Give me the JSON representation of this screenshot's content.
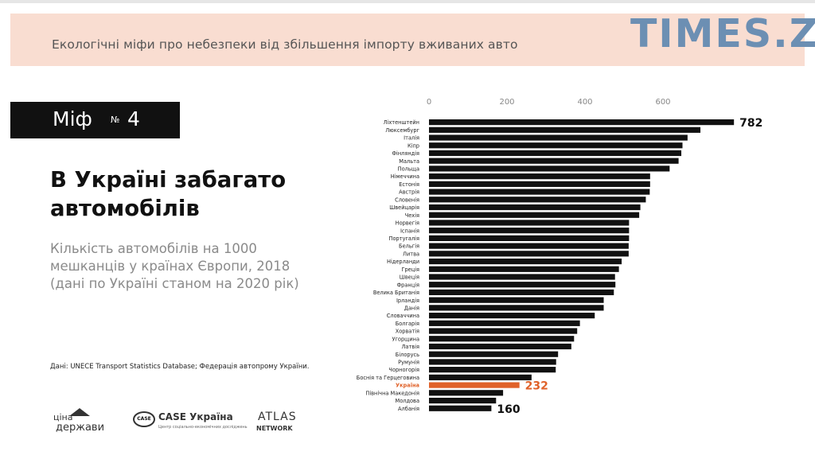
{
  "banner": {
    "text": "Екологічні міфи про небезпеки від збільшення імпорту вживаних авто"
  },
  "watermark": {
    "text": "TIMES.ZT"
  },
  "myth": {
    "word": "Міф",
    "no": "№",
    "number": "4"
  },
  "headline": {
    "line1": "В Україні забагато",
    "line2": "автомобілів"
  },
  "subtitle": {
    "line1": "Кількість автомобілів на 1000",
    "line2": "мешканців у країнах Європи, 2018",
    "line3": "(дані по Україні станом на 2020 рік)"
  },
  "source": {
    "text": "Дані: UNECE Transport Statistics Database; Федерація автопрому України."
  },
  "logos": {
    "cina_line1": "ціна",
    "cina_line2": "держави",
    "case_badge": "CASE",
    "case_name": "CASE Україна",
    "case_small": "Центр соціально-економічних досліджень",
    "atlas_line1": "ATLAS",
    "atlas_line2": "NETWORK"
  },
  "colors": {
    "bar": "#111111",
    "highlight": "#e0622a",
    "axis_text": "#888888"
  },
  "chart_data": {
    "type": "bar",
    "orientation": "horizontal",
    "xlim": [
      0,
      800
    ],
    "ticks": [
      0,
      200,
      400,
      600
    ],
    "highlight": "Україна",
    "categories": [
      "Ліхтенштейн",
      "Люксембург",
      "Італія",
      "Кіпр",
      "Фінляндія",
      "Мальта",
      "Польща",
      "Німеччина",
      "Естонія",
      "Австрія",
      "Словенія",
      "Швейцарія",
      "Чехія",
      "Норвегія",
      "Іспанія",
      "Португалія",
      "Бельгія",
      "Литва",
      "Нідерланди",
      "Греція",
      "Швеція",
      "Франція",
      "Велика Британія",
      "Ірландія",
      "Данія",
      "Словаччина",
      "Болгарія",
      "Хорватія",
      "Угорщина",
      "Латвія",
      "Білорусь",
      "Румунія",
      "Чорногорія",
      "Боснія та Герцеговина",
      "Україна",
      "Північна Македонія",
      "Молдова",
      "Албанія"
    ],
    "values": [
      782,
      696,
      663,
      650,
      647,
      640,
      617,
      567,
      567,
      566,
      556,
      542,
      539,
      513,
      513,
      513,
      512,
      512,
      494,
      487,
      477,
      478,
      474,
      448,
      448,
      425,
      387,
      380,
      372,
      365,
      331,
      326,
      325,
      263,
      232,
      190,
      172,
      160
    ],
    "data_labels": [
      {
        "category": "Ліхтенштейн",
        "text": "782"
      },
      {
        "category": "Україна",
        "text": "232"
      },
      {
        "category": "Албанія",
        "text": "160"
      }
    ]
  }
}
